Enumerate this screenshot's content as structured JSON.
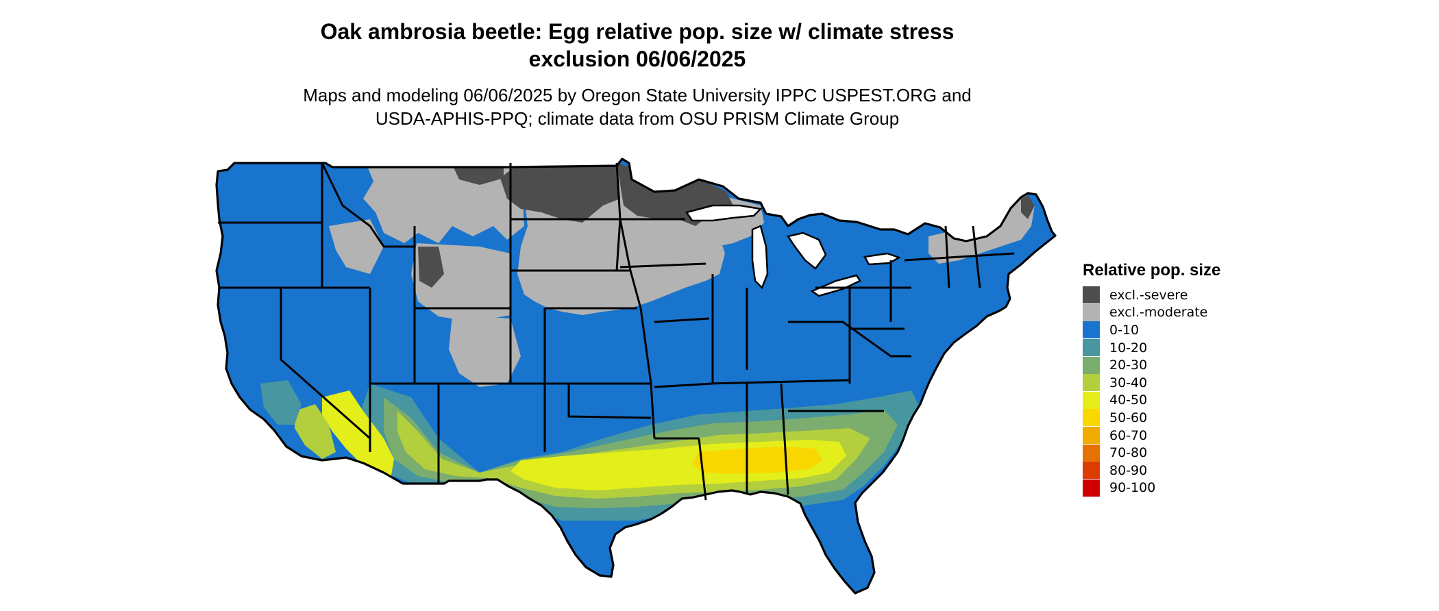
{
  "title_line1": "Oak ambrosia beetle: Egg relative pop. size w/ climate stress",
  "title_line2": "exclusion 06/06/2025",
  "subtitle_line1": "Maps and modeling 06/06/2025 by Oregon State University IPPC USPEST.ORG and",
  "subtitle_line2": "USDA-APHIS-PPQ; climate data from OSU PRISM Climate Group",
  "legend": {
    "title": "Relative pop. size",
    "items": [
      {
        "label": "excl.-severe",
        "color": "#4d4d4d"
      },
      {
        "label": "excl.-moderate",
        "color": "#b3b3b3"
      },
      {
        "label": "0-10",
        "color": "#1874cd"
      },
      {
        "label": "10-20",
        "color": "#4896a0"
      },
      {
        "label": "20-30",
        "color": "#7aad6e"
      },
      {
        "label": "30-40",
        "color": "#b3cf3d"
      },
      {
        "label": "40-50",
        "color": "#e3ee1b"
      },
      {
        "label": "50-60",
        "color": "#f8d800"
      },
      {
        "label": "60-70",
        "color": "#f0ac00"
      },
      {
        "label": "70-80",
        "color": "#e57100"
      },
      {
        "label": "80-90",
        "color": "#db3c00"
      },
      {
        "label": "90-100",
        "color": "#cf0000"
      }
    ]
  },
  "map": {
    "region": "contiguous-united-states",
    "colors": {
      "severe": "#4d4d4d",
      "moderate": "#b3b3b3",
      "low": "#1874cd",
      "c10_20": "#4896a0",
      "c20_30": "#7aad6e",
      "c30_40": "#b3cf3d",
      "c40_50": "#e3ee1b",
      "c50_60": "#f8d800",
      "border": "#000000",
      "lake": "#ffffff"
    }
  }
}
